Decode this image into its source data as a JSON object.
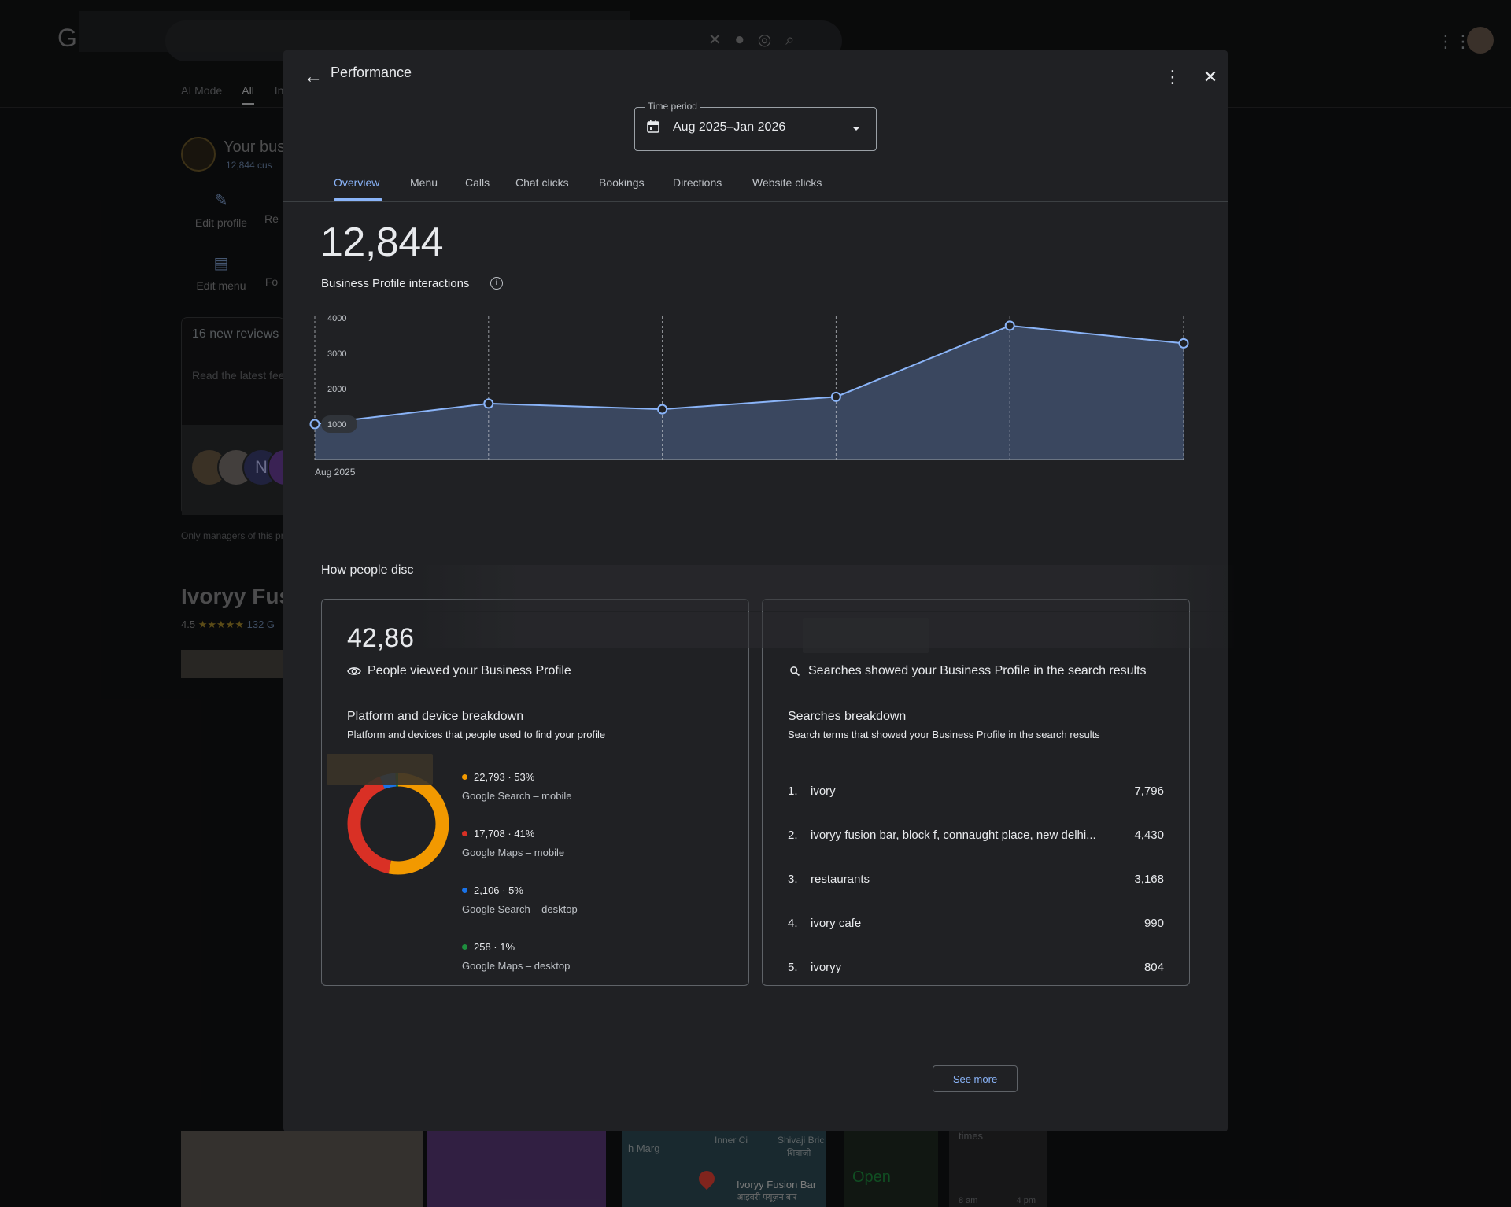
{
  "background": {
    "logo": "G",
    "tabs": [
      "AI Mode",
      "All",
      "In"
    ],
    "business_title": "Your bus",
    "business_sub": "12,844 cus",
    "actions": [
      {
        "label": "Edit profile"
      },
      {
        "label": "Re"
      },
      {
        "label": "Edit menu"
      },
      {
        "label": "Fo"
      }
    ],
    "reviews_title": "16 new reviews",
    "reviews_sub": "Read the latest fee",
    "avatar_letter": "N",
    "managers_note": "Only managers of this pr",
    "place_name": "Ivoryy Fus",
    "place_rating": "4.5",
    "place_stars": "★★★★★",
    "place_reviews": "132 G",
    "map_labels": [
      "h Marg",
      "Inner Ci",
      "Shivaji Bric",
      "शिवाजी",
      "Ivoryy Fusion Bar",
      "आइवरी फ्यूज़न बार"
    ],
    "open_label": "Open",
    "times_label": "times",
    "times_axis": [
      "8 am",
      "4 pm"
    ]
  },
  "modal": {
    "title": "Performance",
    "back_icon": "arrow-left-icon",
    "more_icon": "more-vert-icon",
    "close_icon": "close-icon",
    "time_period": {
      "label": "Time period",
      "value": "Aug 2025–Jan 2026"
    },
    "tabs": [
      {
        "label": "Overview",
        "active": true
      },
      {
        "label": "Menu"
      },
      {
        "label": "Calls"
      },
      {
        "label": "Chat clicks"
      },
      {
        "label": "Bookings"
      },
      {
        "label": "Directions"
      },
      {
        "label": "Website clicks"
      }
    ],
    "total": "12,844",
    "total_label": "Business Profile interactions",
    "discover_title": "How people disc",
    "views": {
      "value": "42,86",
      "label": "People viewed your Business Profile",
      "breakdown_title": "Platform and device breakdown",
      "breakdown_sub": "Platform and devices that people used to find your profile",
      "items": [
        {
          "value": "22,793 · 53%",
          "name": "Google Search – mobile",
          "color": "#f29900",
          "share": 53
        },
        {
          "value": "17,708 · 41%",
          "name": "Google Maps – mobile",
          "color": "#d93025",
          "share": 41
        },
        {
          "value": "2,106 · 5%",
          "name": "Google Search – desktop",
          "color": "#1a73e8",
          "share": 5
        },
        {
          "value": "258 · 1%",
          "name": "Google Maps – desktop",
          "color": "#1e8e3e",
          "share": 1
        }
      ]
    },
    "searches": {
      "value": "",
      "label": "Searches showed your Business Profile in the search results",
      "breakdown_title": "Searches breakdown",
      "breakdown_sub": "Search terms that showed your Business Profile in the search results",
      "rows": [
        {
          "idx": "1.",
          "term": "ivory",
          "count": "7,796"
        },
        {
          "idx": "2.",
          "term": "ivoryy fusion bar, block f, connaught place, new delhi...",
          "count": "4,430"
        },
        {
          "idx": "3.",
          "term": "restaurants",
          "count": "3,168"
        },
        {
          "idx": "4.",
          "term": "ivory cafe",
          "count": "990"
        },
        {
          "idx": "5.",
          "term": "ivoryy",
          "count": "804"
        }
      ],
      "see_more": "See more"
    }
  },
  "chart_data": {
    "type": "area",
    "title": "",
    "xlabel": "",
    "ylabel": "",
    "x_tick_labels": [
      "Aug 2025"
    ],
    "y_ticks": [
      "1000",
      "2000",
      "3000",
      "4000"
    ],
    "ylim": [
      0,
      4000
    ],
    "series": [
      {
        "values": [
          1000,
          1580,
          1420,
          1770,
          3780,
          3280
        ],
        "color": "#8ab4f8"
      }
    ],
    "grid": "vertical dashed"
  }
}
